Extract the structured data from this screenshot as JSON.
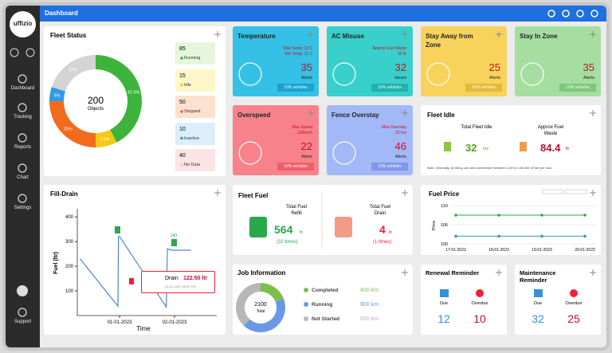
{
  "header": {
    "logo": "uffizio",
    "title": "Dashboard"
  },
  "sidebar": [
    "Dashboard",
    "Tracking",
    "Reports",
    "Chart",
    "Settings",
    "Support"
  ],
  "fleet_status": {
    "title": "Fleet Status",
    "total": 200,
    "total_label": "Objects",
    "items": [
      {
        "name": "Running",
        "value": 85,
        "label": "42.5%",
        "color": "#3cb43c"
      },
      {
        "name": "Idle",
        "value": 15,
        "label": "7.5%",
        "color": "#f5c816"
      },
      {
        "name": "Stopped",
        "value": 50,
        "label": "25%",
        "color": "#f26b1d"
      },
      {
        "name": "Inactive",
        "value": 10,
        "label": "5%",
        "color": "#2f9be8"
      },
      {
        "name": "No Data",
        "value": 40,
        "label": "20%",
        "color": "#d4d4d4"
      }
    ]
  },
  "tiles": [
    {
      "title": "Temperature",
      "lines": [
        "Max Temp: 13 C",
        "Min Temp: 11 C"
      ],
      "value": 35,
      "unit": "Alerts",
      "badge": "10% vehicles"
    },
    {
      "title": "AC Misuse",
      "lines": [
        "Approx Fuel Waste",
        "32 ltr"
      ],
      "value": 32,
      "unit": "Hours",
      "badge": "10% vehicles"
    },
    {
      "title": "Stay Away from Zone",
      "lines": [],
      "value": 25,
      "unit": "Alerts",
      "badge": "10% vehicles"
    },
    {
      "title": "Stay In Zone",
      "lines": [],
      "value": 35,
      "unit": "Alerts",
      "badge": "10% vehicles"
    },
    {
      "title": "Overspeed",
      "lines": [
        "Max Speed",
        "120km/h"
      ],
      "value": 22,
      "unit": "Alerts",
      "badge": "10% vehicles"
    },
    {
      "title": "Fence Overstay",
      "lines": [
        "Max Overstay",
        "22 hrs"
      ],
      "value": 46,
      "unit": "Alerts",
      "badge": "10% vehicles"
    }
  ],
  "fleet_idle": {
    "title": "Fleet Idle",
    "idle_label": "Total Fleet Idle",
    "idle": 32,
    "idle_unit": "hrs",
    "waste_label": "Approx Fuel Waste",
    "waste": 84.4,
    "waste_unit": "ltr",
    "note": "Note: Generally, an idling car uses somewhere between 1.89 to 2.84 liter of fuel per hour."
  },
  "fill_drain": {
    "title": "Fill-Drain",
    "type": "line",
    "y_label": "Fuel (ltr)",
    "x_label": "Time",
    "x": [
      0.28,
      0.97,
      0.98,
      1.0,
      1.85,
      1.87,
      1.97,
      2.3
    ],
    "values": [
      230,
      38,
      320,
      320,
      35,
      270,
      265,
      265
    ],
    "color": "#4a86d6",
    "xlim": [
      0.23,
      2.74
    ],
    "ylim": [
      0,
      420
    ],
    "yticks": [
      100,
      200,
      300,
      400
    ],
    "xticks": [
      {
        "value": 1,
        "label": "01-01-2023"
      },
      {
        "value": 2,
        "label": "02-01-2023"
      }
    ],
    "point_label": "240",
    "drain": {
      "title": "Drain",
      "amount": "122.50 ltr",
      "time": "31-01-2021 03:00 PM"
    }
  },
  "fleet_fuel": {
    "title": "Fleet Fuel",
    "refill_label": "Total Fuel Refill",
    "refill": 564,
    "refill_unit": "ltr",
    "refill_times": "(32 times)",
    "drain_label": "Total Fuel Drain",
    "drain": 4,
    "drain_unit": "ltr",
    "drain_times": "(1 times)"
  },
  "fuel_price": {
    "title": "Fuel Price",
    "type": "line",
    "y_label": "Price",
    "categories": [
      "17-01-2023",
      "18-01-2023",
      "19-01-2023",
      "20-01-2023"
    ],
    "series": [
      {
        "color": "#2aa84a",
        "values": [
          107.5,
          107.5,
          107.5,
          107.5
        ]
      },
      {
        "color": "#2f9bb8",
        "values": [
          102,
          102,
          102,
          102
        ]
      }
    ],
    "ylim": [
      100,
      110
    ],
    "yticks": [
      100,
      105,
      110
    ],
    "grid": true
  },
  "job_info": {
    "title": "Job Information",
    "total": 2100,
    "total_label": "Total",
    "items": [
      {
        "name": "Completed",
        "value": 400,
        "label": "400 km",
        "color": "#7cc04a"
      },
      {
        "name": "Running",
        "value": 900,
        "label": "900 km",
        "color": "#6b98e6"
      },
      {
        "name": "Not Started",
        "value": 800,
        "label": "800 km",
        "color": "#b7b7b7"
      }
    ]
  },
  "reminders": [
    {
      "title": "Renewal Reminder",
      "due_label": "Due",
      "due": 12,
      "overdue_label": "Overdue",
      "overdue": 10
    },
    {
      "title": "Maintenance Reminder",
      "due_label": "Due",
      "due": 32,
      "overdue_label": "Overdue",
      "overdue": 25
    }
  ]
}
